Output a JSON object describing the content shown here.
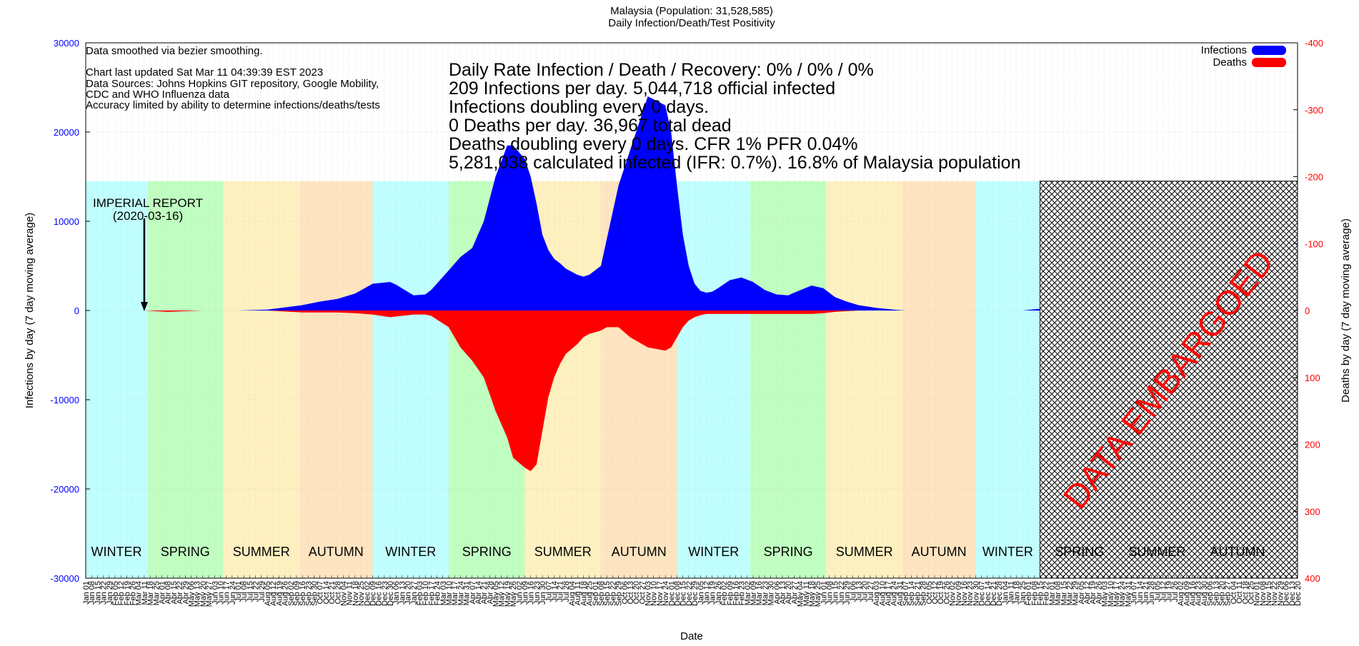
{
  "title": "Malaysia (Population: 31,528,585)",
  "subtitle": "Daily Infection/Death/Test Positivity",
  "notes": {
    "smoothing": "Data smoothed via bezier smoothing.",
    "updated": "Chart last updated Sat Mar 11 04:39:39 EST 2023",
    "sources_1": "Data Sources: Johns Hopkins GIT repository, Google Mobility,",
    "sources_2": "CDC and WHO Influenza data",
    "accuracy": "Accuracy limited by ability to determine infections/deaths/tests"
  },
  "stats": [
    "Daily Rate Infection / Death / Recovery: 0% / 0% / 0%",
    "209 Infections per day.  5,044,718 official infected",
    "Infections doubling every 0 days.",
    "0 Deaths per day.  36,967 total dead",
    "Deaths doubling every 0 days.  CFR 1%  PFR 0.04%",
    "5,281,038 calculated infected (IFR: 0.7%).  16.8% of Malaysia population"
  ],
  "annotation": {
    "line1": "IMPERIAL REPORT",
    "line2": "(2020-03-16)",
    "x": 10
  },
  "embargo_text": "DATA EMBARGOED",
  "colors": {
    "infections": "#0000ff",
    "deaths": "#ff0000",
    "winter": "#c0ffff",
    "spring": "#c0ffc0",
    "summer": "#fff0c0",
    "autumn": "#ffe4c0",
    "left_axis": "#0000ff",
    "right_axis": "#ff0000"
  },
  "chart_data": {
    "type": "area",
    "xlabel": "Date",
    "ylabel_left": "Infections by day (7 day moving average)",
    "ylabel_right": "Deaths by day (7 day moving average)",
    "ylim_left": [
      -30000,
      30000
    ],
    "ylim_right": [
      400,
      -400
    ],
    "left_ticks": [
      "30000",
      "20000",
      "10000",
      "0",
      "-10000",
      "-20000",
      "-30000"
    ],
    "right_ticks": [
      "-400",
      "-300",
      "-200",
      "-100",
      "0",
      "100",
      "200",
      "300",
      "400"
    ],
    "x_tick_labels": [
      "Jan 01",
      "Jan 08",
      "Jan 15",
      "Jan 22",
      "Jan 29",
      "Feb 05",
      "Feb 12",
      "Feb 19",
      "Feb 26",
      "Mar 04",
      "Mar 11",
      "Mar 18",
      "Mar 25",
      "Apr 01",
      "Apr 08",
      "Apr 15",
      "Apr 22",
      "Apr 29",
      "May 06",
      "May 13",
      "May 20",
      "May 27",
      "Jun 03",
      "Jun 10",
      "Jun 17",
      "Jun 24",
      "Jul 01",
      "Jul 08",
      "Jul 15",
      "Jul 22",
      "Jul 29",
      "Aug 05",
      "Aug 12",
      "Aug 19",
      "Aug 26",
      "Sep 02",
      "Sep 09",
      "Sep 16",
      "Sep 23",
      "Sep 30",
      "Oct 07",
      "Oct 14",
      "Oct 21",
      "Oct 28",
      "Nov 04",
      "Nov 11",
      "Nov 18",
      "Nov 25",
      "Dec 02",
      "Dec 09",
      "Dec 16",
      "Dec 23",
      "Dec 30",
      "Jan 06",
      "Jan 13",
      "Jan 20",
      "Jan 27",
      "Feb 03",
      "Feb 10",
      "Feb 17",
      "Feb 24",
      "Mar 03",
      "Mar 10",
      "Mar 17",
      "Mar 24",
      "Mar 31",
      "Apr 07",
      "Apr 14",
      "Apr 21",
      "Apr 28",
      "May 05",
      "May 12",
      "May 19",
      "May 26",
      "Jun 02",
      "Jun 09",
      "Jun 16",
      "Jun 23",
      "Jun 30",
      "Jul 07",
      "Jul 14",
      "Jul 21",
      "Jul 28",
      "Aug 04",
      "Aug 11",
      "Aug 18",
      "Aug 25",
      "Sep 01",
      "Sep 08",
      "Sep 15",
      "Sep 22",
      "Sep 29",
      "Oct 06",
      "Oct 13",
      "Oct 20",
      "Oct 27",
      "Nov 03",
      "Nov 10",
      "Nov 17",
      "Nov 24",
      "Dec 01",
      "Dec 08",
      "Dec 15",
      "Dec 22",
      "Dec 29",
      "Jan 05",
      "Jan 12",
      "Jan 19",
      "Jan 26",
      "Feb 02",
      "Feb 09",
      "Feb 16",
      "Feb 23",
      "Mar 02",
      "Mar 09",
      "Mar 16",
      "Mar 23",
      "Mar 30",
      "Apr 06",
      "Apr 13",
      "Apr 20",
      "Apr 27",
      "May 04",
      "May 11",
      "May 18",
      "May 25",
      "Jun 01",
      "Jun 08",
      "Jun 15",
      "Jun 22",
      "Jun 29",
      "Jul 06",
      "Jul 13",
      "Jul 20",
      "Jul 27",
      "Aug 03",
      "Aug 10",
      "Aug 17",
      "Aug 24",
      "Aug 31",
      "Sep 07",
      "Sep 14",
      "Sep 21",
      "Sep 28",
      "Oct 05",
      "Oct 12",
      "Oct 19",
      "Oct 26",
      "Nov 02",
      "Nov 09",
      "Nov 16",
      "Nov 23",
      "Nov 30",
      "Dec 07",
      "Dec 14",
      "Dec 21",
      "Dec 28",
      "Jan 04",
      "Jan 11",
      "Jan 18",
      "Jan 25",
      "Feb 01",
      "Feb 08",
      "Feb 15",
      "Feb 22",
      "Mar 01",
      "Mar 08",
      "Mar 15",
      "Mar 22",
      "Mar 29",
      "Apr 05",
      "Apr 12",
      "Apr 19",
      "Apr 26",
      "May 03",
      "May 10",
      "May 17",
      "May 24",
      "May 31",
      "Jun 07",
      "Jun 14",
      "Jun 21",
      "Jun 28",
      "Jul 05",
      "Jul 12",
      "Jul 19",
      "Jul 26",
      "Aug 02",
      "Aug 09",
      "Aug 16",
      "Aug 23",
      "Aug 30",
      "Sep 06",
      "Sep 13",
      "Sep 20",
      "Sep 27",
      "Oct 04",
      "Oct 11",
      "Oct 18",
      "Oct 25",
      "Nov 01",
      "Nov 08",
      "Nov 15",
      "Nov 22",
      "Nov 29",
      "Dec 06",
      "Dec 13",
      "Dec 20"
    ],
    "seasons": [
      {
        "name": "WINTER",
        "start": 0,
        "end": 10.5,
        "kind": "winter"
      },
      {
        "name": "SPRING",
        "start": 10.5,
        "end": 23.5,
        "kind": "spring"
      },
      {
        "name": "SUMMER",
        "start": 23.5,
        "end": 36.5,
        "kind": "summer"
      },
      {
        "name": "AUTUMN",
        "start": 36.5,
        "end": 49,
        "kind": "autumn"
      },
      {
        "name": "WINTER",
        "start": 49,
        "end": 62,
        "kind": "winter"
      },
      {
        "name": "SPRING",
        "start": 62,
        "end": 75,
        "kind": "spring"
      },
      {
        "name": "SUMMER",
        "start": 75,
        "end": 88,
        "kind": "summer"
      },
      {
        "name": "AUTUMN",
        "start": 88,
        "end": 101,
        "kind": "autumn"
      },
      {
        "name": "WINTER",
        "start": 101,
        "end": 113.5,
        "kind": "winter"
      },
      {
        "name": "SPRING",
        "start": 113.5,
        "end": 126.5,
        "kind": "spring"
      },
      {
        "name": "SUMMER",
        "start": 126.5,
        "end": 139.5,
        "kind": "summer"
      },
      {
        "name": "AUTUMN",
        "start": 139.5,
        "end": 152,
        "kind": "autumn"
      },
      {
        "name": "WINTER",
        "start": 152,
        "end": 163,
        "kind": "winter"
      },
      {
        "name": "SPRING",
        "start": 163,
        "end": 176.5,
        "kind": "embargo"
      },
      {
        "name": "SUMMER",
        "start": 176.5,
        "end": 189.5,
        "kind": "embargo"
      },
      {
        "name": "AUTUMN",
        "start": 189.5,
        "end": 204,
        "kind": "embargo"
      }
    ],
    "embargo_start": 163,
    "series": [
      {
        "name": "Infections",
        "axis": "left",
        "x": [
          10,
          14,
          20,
          26,
          31,
          37,
          40,
          43,
          46,
          49,
          52,
          53,
          55,
          56,
          58,
          59,
          62,
          64,
          66,
          68,
          70,
          72,
          73,
          75,
          76,
          77,
          78,
          79,
          80,
          81,
          82,
          84,
          85,
          86,
          88,
          89,
          91,
          93,
          96,
          99,
          100,
          101,
          102,
          103,
          104,
          105,
          106,
          107,
          108,
          110,
          112,
          114,
          116,
          118,
          120,
          121,
          124,
          126,
          128,
          130,
          132,
          135,
          138,
          140,
          142,
          143,
          145,
          148,
          151,
          154,
          157,
          160,
          163
        ],
        "values": [
          0,
          0,
          0,
          0,
          100,
          600,
          1000,
          1300,
          1900,
          3000,
          3200,
          2900,
          2100,
          1700,
          1800,
          2300,
          4500,
          6000,
          7000,
          10000,
          15000,
          18500,
          18500,
          17000,
          15000,
          12000,
          8500,
          6800,
          5800,
          5300,
          4700,
          4000,
          3800,
          4000,
          5000,
          8000,
          14000,
          18000,
          24000,
          23000,
          20000,
          14000,
          8500,
          5000,
          3000,
          2200,
          2000,
          2100,
          2500,
          3400,
          3700,
          3200,
          2300,
          1800,
          1700,
          2000,
          2800,
          2500,
          1500,
          1000,
          600,
          300,
          100,
          0,
          0,
          0,
          0,
          0,
          0,
          0,
          0,
          0,
          200
        ]
      },
      {
        "name": "Deaths",
        "axis": "right",
        "x": [
          10,
          14,
          20,
          26,
          31,
          37,
          40,
          43,
          46,
          49,
          52,
          53,
          55,
          56,
          58,
          59,
          62,
          64,
          66,
          68,
          70,
          72,
          73,
          75,
          76,
          77,
          78,
          79,
          80,
          81,
          82,
          84,
          85,
          86,
          88,
          89,
          91,
          93,
          96,
          99,
          100,
          101,
          102,
          103,
          104,
          105,
          106,
          107,
          108,
          110,
          112,
          114,
          116,
          118,
          120,
          121,
          124,
          126,
          128,
          130,
          132,
          135,
          138,
          140,
          142,
          143,
          145,
          148,
          151,
          154,
          157,
          160,
          163
        ],
        "values": [
          0,
          2,
          0,
          0,
          0,
          3,
          3,
          3,
          4,
          6,
          10,
          9,
          7,
          6,
          6,
          8,
          25,
          55,
          75,
          100,
          150,
          190,
          220,
          235,
          240,
          230,
          180,
          130,
          100,
          80,
          65,
          50,
          40,
          35,
          30,
          25,
          25,
          40,
          55,
          60,
          55,
          40,
          25,
          15,
          10,
          7,
          5,
          5,
          5,
          5,
          5,
          5,
          5,
          5,
          5,
          5,
          5,
          4,
          2,
          1,
          0,
          0,
          0,
          0,
          0,
          0,
          0,
          0,
          0,
          0,
          0,
          0,
          0
        ]
      }
    ],
    "legend": [
      "Infections",
      "Deaths"
    ],
    "legend_position": "top-right"
  }
}
